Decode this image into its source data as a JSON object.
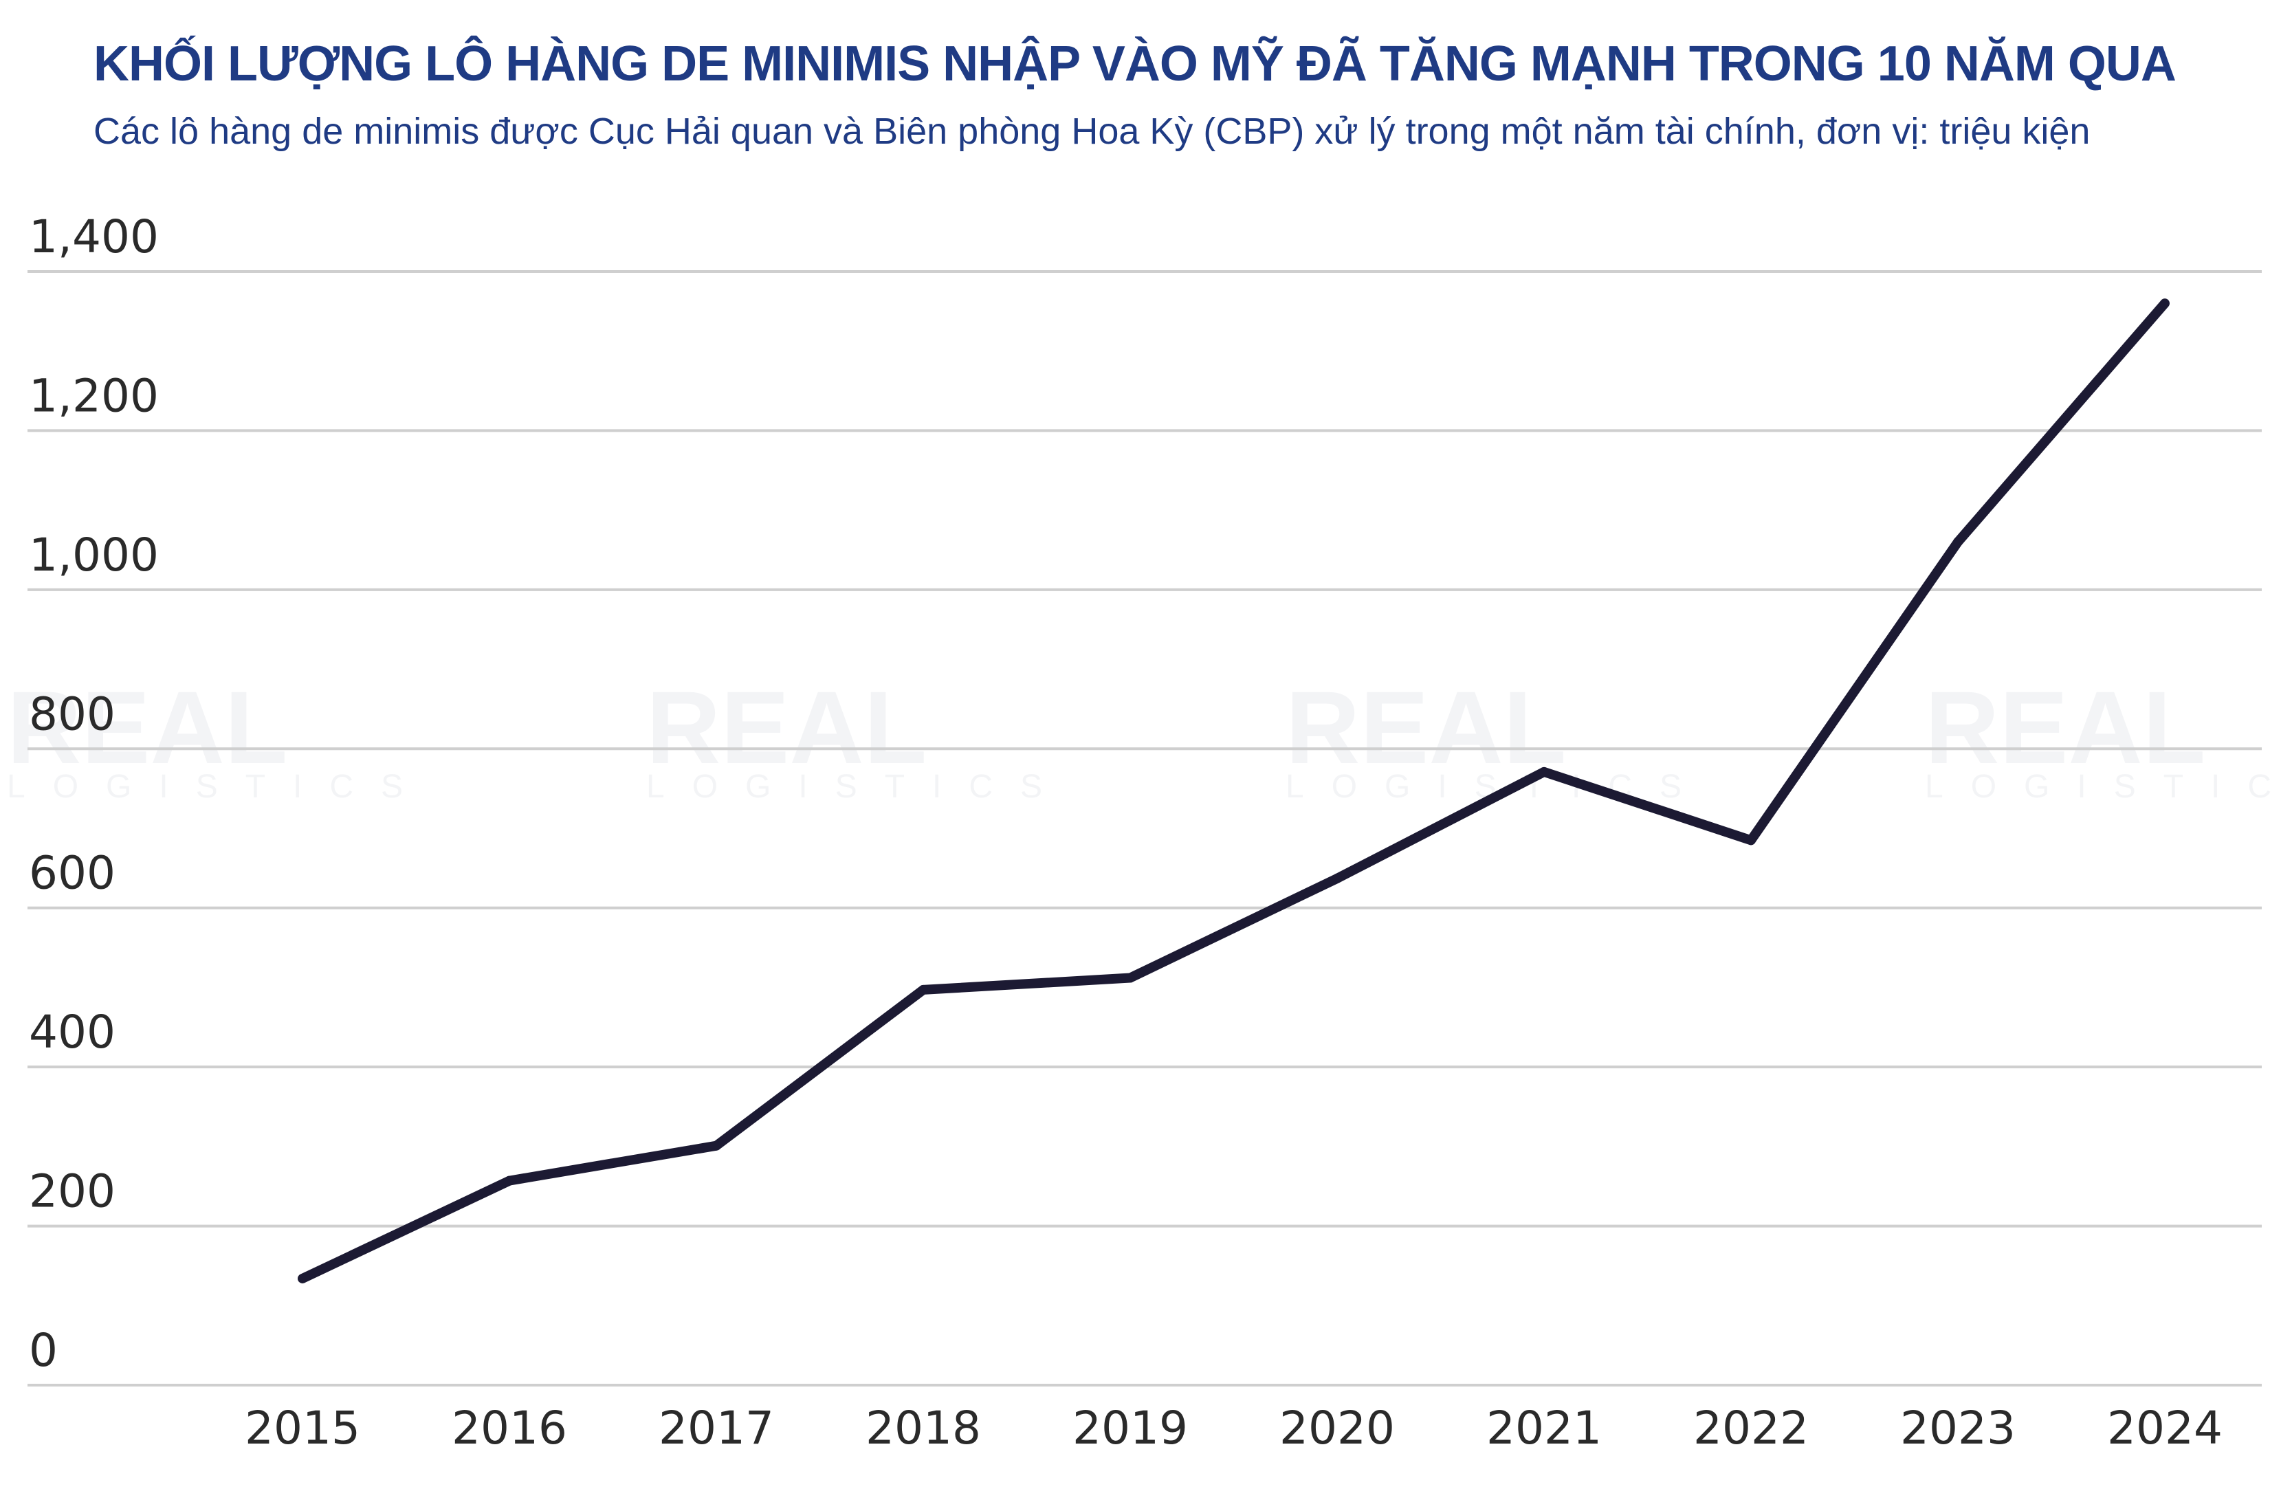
{
  "chart_data": {
    "type": "line",
    "title": "KHỐI LƯỢNG LÔ HÀNG DE MINIMIS NHẬP VÀO MỸ ĐÃ TĂNG MẠNH TRONG 10 NĂM QUA",
    "subtitle": "Các lô hàng de minimis được Cục Hải quan và Biên phòng Hoa Kỳ (CBP) xử lý trong một năm tài chính, đơn vị: triệu kiện",
    "xlabel": "",
    "ylabel": "",
    "categories": [
      "2015",
      "2016",
      "2017",
      "2018",
      "2019",
      "2020",
      "2021",
      "2022",
      "2023",
      "2024"
    ],
    "series": [
      {
        "values": [
          134,
          257,
          301,
          497,
          512,
          637,
          771,
          685,
          1060,
          1360
        ]
      }
    ],
    "yticks": [
      "0",
      "200",
      "400",
      "600",
      "800",
      "1,000",
      "1,200",
      "1,400"
    ],
    "ytick_values": [
      0,
      200,
      400,
      600,
      800,
      1000,
      1200,
      1400
    ],
    "ylim": [
      0,
      1400
    ],
    "grid": true,
    "line_color": "#1c1a33",
    "grid_color": "#cfcfcf",
    "title_color": "#1f3b84"
  },
  "watermark": {
    "text": "REAL",
    "subtext": "LOGISTICS"
  }
}
